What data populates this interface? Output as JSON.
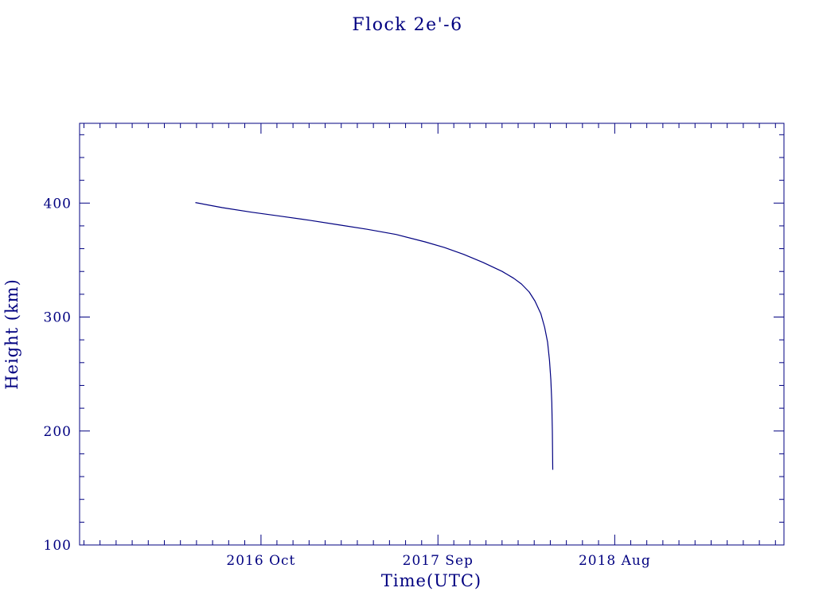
{
  "page": {
    "background": "#ffffff",
    "accent_color": "#000080"
  },
  "chart_data": {
    "type": "line",
    "title": "Flock 2e'-6",
    "xlabel": "Time(UTC)",
    "ylabel": "Height (km)",
    "xlim": [
      2015.81,
      2019.46
    ],
    "ylim": [
      100,
      470
    ],
    "grid": false,
    "legend": "none",
    "line_color": "#000080",
    "x_ticks": [
      {
        "value": 2016.75,
        "label": "2016 Oct"
      },
      {
        "value": 2017.667,
        "label": "2017 Sep"
      },
      {
        "value": 2018.583,
        "label": "2018 Aug"
      }
    ],
    "x_minor_step_years": 0.0833333,
    "y_major_ticks": [
      100,
      200,
      300,
      400
    ],
    "y_minor_step": 20,
    "series": [
      {
        "name": "Flock 2e'-6 orbital height",
        "points": [
          [
            2016.41,
            400.5
          ],
          [
            2016.55,
            396
          ],
          [
            2016.7,
            392
          ],
          [
            2016.85,
            388.5
          ],
          [
            2017.0,
            385
          ],
          [
            2017.15,
            381
          ],
          [
            2017.3,
            377
          ],
          [
            2017.45,
            372.5
          ],
          [
            2017.6,
            366
          ],
          [
            2017.7,
            361
          ],
          [
            2017.8,
            355
          ],
          [
            2017.9,
            348
          ],
          [
            2018.0,
            340
          ],
          [
            2018.06,
            334
          ],
          [
            2018.1,
            329
          ],
          [
            2018.14,
            322
          ],
          [
            2018.17,
            314
          ],
          [
            2018.2,
            303
          ],
          [
            2018.22,
            291
          ],
          [
            2018.235,
            278
          ],
          [
            2018.245,
            262
          ],
          [
            2018.252,
            245
          ],
          [
            2018.257,
            225
          ],
          [
            2018.26,
            200
          ],
          [
            2018.262,
            166
          ]
        ]
      }
    ]
  }
}
